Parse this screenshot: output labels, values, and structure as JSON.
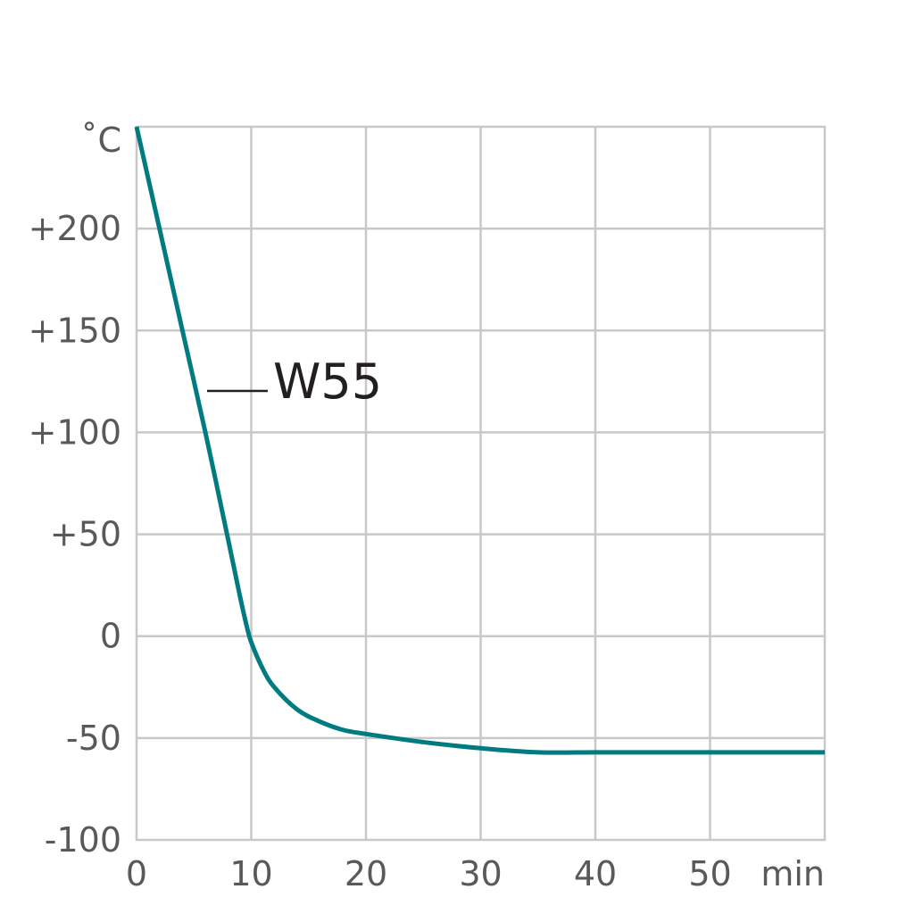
{
  "chart_data": {
    "type": "line",
    "title": "",
    "ylabel": "˚C",
    "xlabel": "min",
    "xlim": [
      0,
      60
    ],
    "ylim": [
      -100,
      250
    ],
    "grid": true,
    "x_ticks": [
      0,
      10,
      20,
      30,
      40,
      50
    ],
    "x_tick_labels": [
      "0",
      "10",
      "20",
      "30",
      "40",
      "50"
    ],
    "y_ticks": [
      200,
      150,
      100,
      50,
      0,
      -50,
      -100
    ],
    "y_tick_labels": [
      "+200",
      "+150",
      "+100",
      "+50",
      "0",
      "-50",
      "-100"
    ],
    "series": [
      {
        "name": "W55",
        "color": "#007b7f",
        "x": [
          0,
          2,
          4,
          6,
          8,
          9,
          9.6,
          10,
          11,
          12,
          14,
          16,
          18,
          20,
          25,
          30,
          35,
          40,
          45,
          50,
          55,
          60
        ],
        "y": [
          250,
          200,
          150,
          100,
          47,
          20,
          5,
          -3,
          -16,
          -25,
          -36,
          -42,
          -46,
          -48,
          -52,
          -55,
          -57,
          -57,
          -57,
          -57,
          -57,
          -57
        ]
      }
    ]
  }
}
